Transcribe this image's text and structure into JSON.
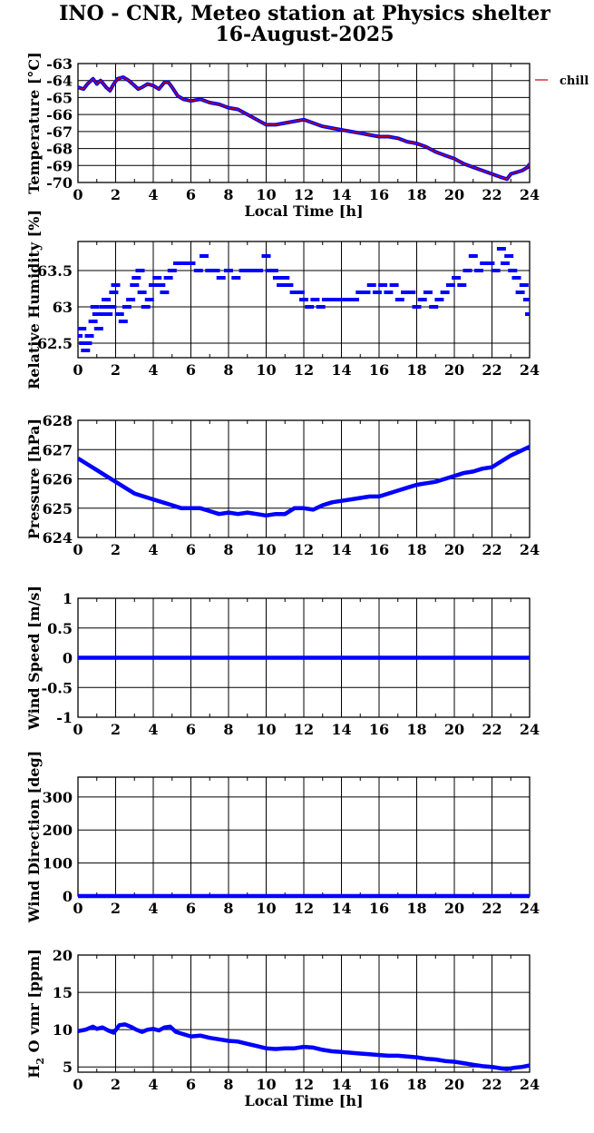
{
  "title": {
    "line1": "INO - CNR, Meteo station at Physics shelter",
    "line2": "16-August-2025"
  },
  "colors": {
    "series": "#0000ff",
    "secondary": "#cc0000",
    "grid": "#000000"
  },
  "chart_data": [
    {
      "id": "temperature",
      "type": "line",
      "ylabel": "Temperature [°C]",
      "xlabel": "Local Time [h]",
      "xlim": [
        0,
        24
      ],
      "ylim": [
        -70,
        -63
      ],
      "xticks": [
        0,
        2,
        4,
        6,
        8,
        10,
        12,
        14,
        16,
        18,
        20,
        22,
        24
      ],
      "yticks": [
        -70,
        -69,
        -68,
        -67,
        -66,
        -65,
        -64,
        -63
      ],
      "legend": {
        "position": "right-outside-top",
        "entries": [
          "chill"
        ]
      },
      "series": [
        {
          "name": "",
          "color": "#0000ff",
          "x": [
            0,
            0.3,
            0.5,
            0.8,
            1.0,
            1.2,
            1.5,
            1.7,
            1.9,
            2.1,
            2.4,
            2.7,
            3.0,
            3.2,
            3.4,
            3.7,
            4.0,
            4.3,
            4.6,
            4.8,
            5.0,
            5.3,
            5.6,
            6.0,
            6.5,
            7.0,
            7.5,
            8.0,
            8.5,
            9.0,
            9.5,
            10.0,
            10.5,
            11.0,
            11.5,
            12.0,
            12.5,
            13.0,
            13.5,
            14.0,
            14.5,
            15.0,
            15.5,
            16.0,
            16.5,
            17.0,
            17.5,
            18.0,
            18.5,
            19.0,
            19.5,
            20.0,
            20.5,
            21.0,
            21.5,
            22.0,
            22.5,
            22.8,
            23.0,
            23.3,
            23.6,
            23.9,
            24.0
          ],
          "y": [
            -64.4,
            -64.5,
            -64.2,
            -63.9,
            -64.2,
            -64.0,
            -64.4,
            -64.6,
            -64.2,
            -63.9,
            -63.8,
            -64.0,
            -64.3,
            -64.5,
            -64.4,
            -64.2,
            -64.3,
            -64.5,
            -64.1,
            -64.1,
            -64.4,
            -64.9,
            -65.1,
            -65.2,
            -65.1,
            -65.3,
            -65.4,
            -65.6,
            -65.7,
            -66.0,
            -66.3,
            -66.6,
            -66.6,
            -66.5,
            -66.4,
            -66.3,
            -66.5,
            -66.7,
            -66.8,
            -66.9,
            -67.0,
            -67.1,
            -67.2,
            -67.3,
            -67.3,
            -67.4,
            -67.6,
            -67.7,
            -67.9,
            -68.2,
            -68.4,
            -68.6,
            -68.9,
            -69.1,
            -69.3,
            -69.5,
            -69.7,
            -69.8,
            -69.5,
            -69.4,
            -69.3,
            -69.1,
            -68.9
          ]
        },
        {
          "name": "chill",
          "color": "#cc0000",
          "same_as_series": 0
        }
      ]
    },
    {
      "id": "humidity",
      "type": "scatter",
      "ylabel": "Relative Humidity [%]",
      "xlabel": "",
      "xlim": [
        0,
        24
      ],
      "ylim": [
        62.3,
        63.9
      ],
      "xticks": [
        0,
        2,
        4,
        6,
        8,
        10,
        12,
        14,
        16,
        18,
        20,
        22,
        24
      ],
      "yticks": [
        62.5,
        63,
        63.5
      ],
      "yticklabels": [
        "62.5",
        "63",
        "63.5"
      ],
      "series": [
        {
          "name": "",
          "color": "#0000ff",
          "x": [
            0.0,
            0.2,
            0.3,
            0.4,
            0.5,
            0.6,
            0.8,
            0.9,
            1.0,
            1.1,
            1.3,
            1.4,
            1.5,
            1.6,
            1.8,
            1.9,
            2.0,
            2.2,
            2.4,
            2.6,
            2.8,
            3.0,
            3.1,
            3.3,
            3.4,
            3.6,
            3.8,
            4.0,
            4.2,
            4.4,
            4.6,
            4.8,
            5.0,
            5.3,
            5.6,
            6.0,
            6.4,
            6.7,
            7.0,
            7.3,
            7.6,
            8.0,
            8.4,
            8.8,
            9.2,
            9.6,
            10.0,
            10.2,
            10.4,
            10.6,
            10.8,
            11.0,
            11.2,
            11.5,
            11.8,
            12.0,
            12.3,
            12.6,
            12.9,
            13.2,
            13.5,
            13.8,
            14.1,
            14.4,
            14.7,
            15.0,
            15.3,
            15.6,
            15.9,
            16.2,
            16.5,
            16.8,
            17.1,
            17.4,
            17.7,
            18.0,
            18.3,
            18.6,
            18.9,
            19.2,
            19.5,
            19.8,
            20.1,
            20.4,
            20.7,
            21.0,
            21.3,
            21.6,
            21.9,
            22.2,
            22.5,
            22.7,
            22.9,
            23.1,
            23.3,
            23.5,
            23.7,
            23.9,
            24.0
          ],
          "y": [
            62.6,
            62.7,
            62.5,
            62.4,
            62.5,
            62.6,
            62.8,
            63.0,
            62.9,
            62.7,
            62.9,
            63.0,
            63.1,
            62.9,
            63.0,
            63.2,
            63.3,
            62.9,
            62.8,
            63.0,
            63.1,
            63.3,
            63.4,
            63.5,
            63.2,
            63.0,
            63.1,
            63.3,
            63.4,
            63.3,
            63.2,
            63.4,
            63.5,
            63.6,
            63.6,
            63.6,
            63.5,
            63.7,
            63.5,
            63.5,
            63.4,
            63.5,
            63.4,
            63.5,
            63.5,
            63.5,
            63.7,
            63.5,
            63.5,
            63.4,
            63.3,
            63.4,
            63.3,
            63.2,
            63.2,
            63.1,
            63.0,
            63.1,
            63.0,
            63.1,
            63.1,
            63.1,
            63.1,
            63.1,
            63.1,
            63.2,
            63.2,
            63.3,
            63.2,
            63.3,
            63.2,
            63.3,
            63.1,
            63.2,
            63.2,
            63.0,
            63.1,
            63.2,
            63.0,
            63.1,
            63.2,
            63.3,
            63.4,
            63.3,
            63.5,
            63.7,
            63.5,
            63.6,
            63.6,
            63.5,
            63.8,
            63.6,
            63.7,
            63.5,
            63.4,
            63.2,
            63.3,
            63.1,
            62.9
          ]
        }
      ]
    },
    {
      "id": "pressure",
      "type": "line",
      "ylabel": "Pressure [hPa]",
      "xlabel": "",
      "xlim": [
        0,
        24
      ],
      "ylim": [
        624,
        628
      ],
      "xticks": [
        0,
        2,
        4,
        6,
        8,
        10,
        12,
        14,
        16,
        18,
        20,
        22,
        24
      ],
      "yticks": [
        624,
        625,
        626,
        627,
        628
      ],
      "series": [
        {
          "name": "",
          "color": "#0000ff",
          "x": [
            0,
            0.5,
            1.0,
            1.5,
            2.0,
            2.5,
            3.0,
            3.5,
            4.0,
            4.5,
            5.0,
            5.5,
            6.0,
            6.5,
            7.0,
            7.5,
            8.0,
            8.5,
            9.0,
            9.5,
            10.0,
            10.5,
            11.0,
            11.5,
            12.0,
            12.5,
            13.0,
            13.5,
            14.0,
            14.5,
            15.0,
            15.5,
            16.0,
            16.5,
            17.0,
            17.5,
            18.0,
            18.5,
            19.0,
            19.5,
            20.0,
            20.5,
            21.0,
            21.5,
            22.0,
            22.5,
            23.0,
            23.5,
            24.0
          ],
          "y": [
            626.7,
            626.5,
            626.3,
            626.1,
            625.9,
            625.7,
            625.5,
            625.4,
            625.3,
            625.2,
            625.1,
            625.0,
            625.0,
            625.0,
            624.9,
            624.8,
            624.85,
            624.8,
            624.85,
            624.8,
            624.75,
            624.8,
            624.8,
            625.0,
            625.0,
            624.95,
            625.1,
            625.2,
            625.25,
            625.3,
            625.35,
            625.4,
            625.4,
            625.5,
            625.6,
            625.7,
            625.8,
            625.85,
            625.9,
            626.0,
            626.1,
            626.2,
            626.25,
            626.35,
            626.4,
            626.6,
            626.8,
            626.95,
            627.1
          ]
        }
      ]
    },
    {
      "id": "wind_speed",
      "type": "line",
      "ylabel": "Wind Speed [m/s]",
      "xlabel": "",
      "xlim": [
        0,
        24
      ],
      "ylim": [
        -1,
        1
      ],
      "xticks": [
        0,
        2,
        4,
        6,
        8,
        10,
        12,
        14,
        16,
        18,
        20,
        22,
        24
      ],
      "yticks": [
        -1,
        -0.5,
        0,
        0.5,
        1
      ],
      "series": [
        {
          "name": "",
          "color": "#0000ff",
          "x": [
            0,
            24
          ],
          "y": [
            0,
            0
          ]
        }
      ]
    },
    {
      "id": "wind_direction",
      "type": "line",
      "ylabel": "Wind Direction [deg]",
      "xlabel": "",
      "xlim": [
        0,
        24
      ],
      "ylim": [
        0,
        360
      ],
      "xticks": [
        0,
        2,
        4,
        6,
        8,
        10,
        12,
        14,
        16,
        18,
        20,
        22,
        24
      ],
      "yticks": [
        0,
        100,
        200,
        300
      ],
      "series": [
        {
          "name": "",
          "color": "#0000ff",
          "x": [
            0,
            24
          ],
          "y": [
            0,
            0
          ]
        }
      ]
    },
    {
      "id": "h2o_vmr",
      "type": "line",
      "ylabel": "H2O vmr [ppm]",
      "xlabel": "Local Time [h]",
      "xlim": [
        0,
        24
      ],
      "ylim": [
        4.3,
        20
      ],
      "xticks": [
        0,
        2,
        4,
        6,
        8,
        10,
        12,
        14,
        16,
        18,
        20,
        22,
        24
      ],
      "yticks": [
        5,
        10,
        15,
        20
      ],
      "series": [
        {
          "name": "",
          "color": "#0000ff",
          "x": [
            0,
            0.4,
            0.8,
            1.0,
            1.3,
            1.6,
            1.9,
            2.2,
            2.5,
            2.8,
            3.1,
            3.4,
            3.7,
            4.0,
            4.3,
            4.6,
            4.9,
            5.2,
            5.6,
            6.0,
            6.5,
            7.0,
            7.5,
            8.0,
            8.5,
            9.0,
            9.5,
            10.0,
            10.5,
            11.0,
            11.5,
            12.0,
            12.5,
            13.0,
            13.5,
            14.0,
            14.5,
            15.0,
            15.5,
            16.0,
            16.5,
            17.0,
            17.5,
            18.0,
            18.5,
            19.0,
            19.5,
            20.0,
            20.5,
            21.0,
            21.5,
            22.0,
            22.5,
            22.8,
            23.2,
            23.6,
            24.0
          ],
          "y": [
            9.8,
            10.0,
            10.4,
            10.1,
            10.3,
            9.9,
            9.6,
            10.6,
            10.7,
            10.4,
            10.0,
            9.7,
            10.0,
            10.1,
            9.9,
            10.3,
            10.4,
            9.7,
            9.4,
            9.1,
            9.2,
            8.9,
            8.7,
            8.5,
            8.4,
            8.1,
            7.8,
            7.5,
            7.4,
            7.5,
            7.5,
            7.7,
            7.6,
            7.3,
            7.1,
            7.0,
            6.9,
            6.8,
            6.7,
            6.6,
            6.5,
            6.5,
            6.4,
            6.3,
            6.1,
            6.0,
            5.8,
            5.7,
            5.5,
            5.3,
            5.1,
            5.0,
            4.8,
            4.7,
            4.9,
            5.0,
            5.2
          ]
        }
      ]
    }
  ]
}
